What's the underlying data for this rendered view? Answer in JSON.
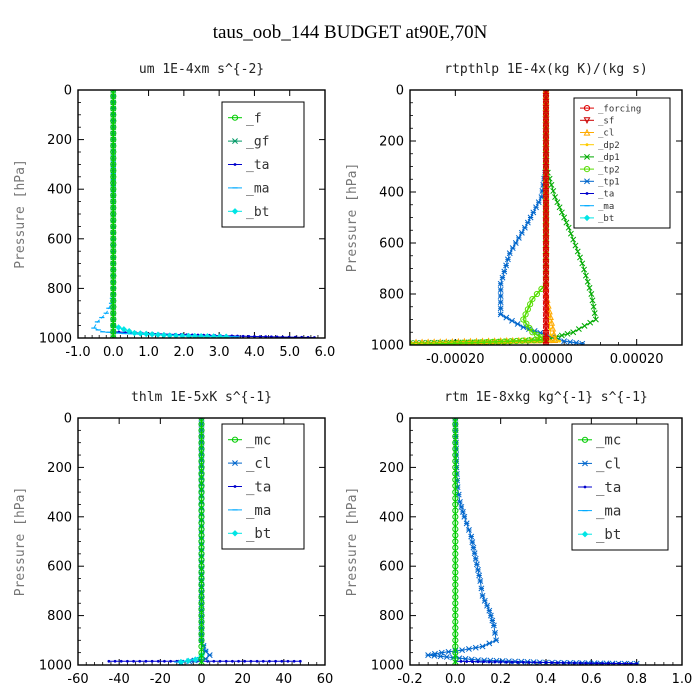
{
  "page_title": "taus_oob_144  BUDGET at90E,70N",
  "colors": {
    "green": "#00cc00",
    "teal": "#009966",
    "blue": "#0000cc",
    "cyan": "#00aaff",
    "aqua": "#00e5e5",
    "red": "#dd0000",
    "orange": "#ffaa00",
    "gold": "#ffcc00",
    "lime": "#55dd00"
  },
  "chart_data": [
    {
      "type": "line",
      "title": "um  1E-4xm s^{-2}",
      "ylabel": "Pressure [hPa]",
      "xlim": [
        -1.0,
        6.0
      ],
      "ylim": [
        0,
        1000
      ],
      "y_inverted": true,
      "x_ticks": [
        "-1.0",
        "0.0",
        "1.0",
        "2.0",
        "3.0",
        "4.0",
        "5.0",
        "6.0"
      ],
      "x_tick_values": [
        -1,
        0,
        1,
        2,
        3,
        4,
        5,
        6
      ],
      "y_ticks": [
        "0",
        "200",
        "400",
        "600",
        "800",
        "1000"
      ],
      "y_tick_values": [
        0,
        200,
        400,
        600,
        800,
        1000
      ],
      "legend": {
        "position": "top-right",
        "entries": [
          "_f",
          "_gf",
          "_ta",
          "_ma",
          "_bt"
        ]
      },
      "series": [
        {
          "name": "_ta",
          "color": "#0000cc",
          "marker": "dot",
          "points": [
            [
              0,
              975
            ],
            [
              0.8,
              980
            ],
            [
              1.6,
              985
            ],
            [
              2.4,
              988
            ],
            [
              3.2,
              991
            ],
            [
              4.0,
              994
            ],
            [
              4.8,
              996
            ],
            [
              5.7,
              998
            ]
          ]
        },
        {
          "name": "_ma",
          "color": "#00aaff",
          "marker": "dash",
          "points": [
            [
              0,
              0
            ],
            [
              0,
              820
            ],
            [
              -0.05,
              860
            ],
            [
              -0.2,
              900
            ],
            [
              -0.45,
              935
            ],
            [
              -0.55,
              960
            ],
            [
              -0.3,
              975
            ],
            [
              0.3,
              982
            ],
            [
              1.2,
              987
            ],
            [
              2.5,
              992
            ],
            [
              3.5,
              995
            ]
          ]
        },
        {
          "name": "_bt",
          "color": "#00e5e5",
          "marker": "diamond",
          "points": [
            [
              0,
              950
            ],
            [
              0.6,
              980
            ],
            [
              1.6,
              990
            ],
            [
              3.2,
              995
            ]
          ]
        },
        {
          "name": "_gf",
          "color": "#009966",
          "marker": "star",
          "points": [
            [
              0,
              0
            ],
            [
              0,
              200
            ],
            [
              0,
              400
            ],
            [
              0,
              600
            ],
            [
              0,
              800
            ],
            [
              0,
              1000
            ]
          ]
        },
        {
          "name": "_f",
          "color": "#00cc00",
          "marker": "circle",
          "points": [
            [
              0,
              0
            ],
            [
              0,
              200
            ],
            [
              0,
              400
            ],
            [
              0,
              600
            ],
            [
              0,
              800
            ],
            [
              0,
              1000
            ]
          ]
        }
      ]
    },
    {
      "type": "line",
      "title": "rtpthlp  1E-4x(kg K)/(kg s)",
      "ylabel": "Pressure [hPa]",
      "xlim": [
        -0.0003,
        0.0003
      ],
      "ylim": [
        0,
        1000
      ],
      "y_inverted": true,
      "x_ticks": [
        "-0.00020",
        "0.00000",
        "0.00020"
      ],
      "x_tick_values": [
        -0.0002,
        0,
        0.0002
      ],
      "y_ticks": [
        "0",
        "200",
        "400",
        "600",
        "800",
        "1000"
      ],
      "y_tick_values": [
        0,
        200,
        400,
        600,
        800,
        1000
      ],
      "legend": {
        "position": "top-right",
        "entries": [
          "_forcing",
          "_sf",
          "_cl",
          "_dp2",
          "_dp1",
          "_tp2",
          "_tp1",
          "_ta",
          "_ma",
          "_bt"
        ]
      },
      "series": [
        {
          "name": "_tp1",
          "color": "#0066cc",
          "marker": "star",
          "points": [
            [
              0,
              0
            ],
            [
              0,
              300
            ],
            [
              -1e-05,
              420
            ],
            [
              -4e-05,
              520
            ],
            [
              -8e-05,
              640
            ],
            [
              -0.0001,
              760
            ],
            [
              -0.0001,
              880
            ],
            [
              -5e-05,
              930
            ],
            [
              0,
              960
            ],
            [
              4e-05,
              985
            ],
            [
              8e-05,
              995
            ]
          ]
        },
        {
          "name": "_dp1",
          "color": "#00aa00",
          "marker": "x",
          "points": [
            [
              0,
              0
            ],
            [
              0,
              300
            ],
            [
              2e-05,
              420
            ],
            [
              5e-05,
              540
            ],
            [
              8e-05,
              680
            ],
            [
              0.0001,
              800
            ],
            [
              0.00011,
              900
            ],
            [
              6e-05,
              950
            ],
            [
              1e-05,
              975
            ],
            [
              -0.0001,
              988
            ],
            [
              -0.0003,
              992
            ]
          ]
        },
        {
          "name": "_dp2",
          "color": "#ffcc00",
          "marker": "dot",
          "points": [
            [
              0,
              0
            ],
            [
              0,
              800
            ],
            [
              1e-05,
              960
            ],
            [
              3e-05,
              985
            ],
            [
              -0.0001,
              990
            ],
            [
              -0.0003,
              993
            ]
          ]
        },
        {
          "name": "_cl",
          "color": "#ffaa00",
          "marker": "triangle",
          "points": [
            [
              0,
              0
            ],
            [
              0,
              800
            ],
            [
              2e-05,
              980
            ],
            [
              -0.0003,
              990
            ]
          ]
        },
        {
          "name": "_tp2",
          "color": "#55dd00",
          "marker": "circle",
          "points": [
            [
              0,
              0
            ],
            [
              0,
              760
            ],
            [
              -3e-05,
              820
            ],
            [
              -5e-05,
              900
            ],
            [
              -3e-05,
              950
            ],
            [
              0,
              980
            ],
            [
              -0.0003,
              1000
            ]
          ]
        },
        {
          "name": "_sf",
          "color": "#cc0000",
          "marker": "triangle-down",
          "points": [
            [
              0,
              0
            ],
            [
              0,
              1000
            ]
          ]
        },
        {
          "name": "_forcing",
          "color": "#dd0000",
          "marker": "circle",
          "points": [
            [
              0,
              0
            ],
            [
              0,
              1000
            ]
          ]
        }
      ]
    },
    {
      "type": "line",
      "title": "thlm  1E-5xK s^{-1}",
      "ylabel": "Pressure [hPa]",
      "xlim": [
        -60,
        60
      ],
      "ylim": [
        0,
        1000
      ],
      "y_inverted": true,
      "x_ticks": [
        "-60",
        "-40",
        "-20",
        "0",
        "20",
        "40",
        "60"
      ],
      "x_tick_values": [
        -60,
        -40,
        -20,
        0,
        20,
        40,
        60
      ],
      "y_ticks": [
        "0",
        "200",
        "400",
        "600",
        "800",
        "1000"
      ],
      "y_tick_values": [
        0,
        200,
        400,
        600,
        800,
        1000
      ],
      "legend": {
        "position": "top-right",
        "entries": [
          "_mc",
          "_cl",
          "_ta",
          "_ma",
          "_bt"
        ]
      },
      "series": [
        {
          "name": "_ta",
          "color": "#0000cc",
          "marker": "dot",
          "points": [
            [
              -45,
              985
            ],
            [
              -30,
              985
            ],
            [
              -15,
              985
            ],
            [
              0,
              985
            ],
            [
              15,
              985
            ],
            [
              30,
              985
            ],
            [
              48,
              985
            ]
          ]
        },
        {
          "name": "_ma",
          "color": "#00aaff",
          "marker": "dash",
          "points": [
            [
              0,
              0
            ],
            [
              0,
              900
            ],
            [
              2,
              940
            ],
            [
              -1,
              970
            ],
            [
              -6,
              982
            ],
            [
              -12,
              988
            ]
          ]
        },
        {
          "name": "_cl",
          "color": "#0066cc",
          "marker": "star",
          "points": [
            [
              0,
              0
            ],
            [
              0,
              900
            ],
            [
              2,
              945
            ],
            [
              4,
              960
            ],
            [
              2,
              975
            ],
            [
              -6,
              985
            ],
            [
              -10,
              990
            ]
          ]
        },
        {
          "name": "_bt",
          "color": "#00e5e5",
          "marker": "diamond",
          "points": [
            [
              0,
              960
            ],
            [
              -3,
              978
            ],
            [
              -10,
              988
            ]
          ]
        },
        {
          "name": "_mc",
          "color": "#00cc00",
          "marker": "circle",
          "points": [
            [
              0,
              0
            ],
            [
              0,
              200
            ],
            [
              0,
              400
            ],
            [
              0,
              600
            ],
            [
              0,
              800
            ],
            [
              0,
              1000
            ]
          ]
        }
      ]
    },
    {
      "type": "line",
      "title": "rtm  1E-8xkg kg^{-1} s^{-1}",
      "ylabel": "Pressure [hPa]",
      "xlim": [
        -0.2,
        1.0
      ],
      "ylim": [
        0,
        1000
      ],
      "y_inverted": true,
      "x_ticks": [
        "-0.2",
        "0.0",
        "0.2",
        "0.4",
        "0.6",
        "0.8",
        "1.0"
      ],
      "x_tick_values": [
        -0.2,
        0,
        0.2,
        0.4,
        0.6,
        0.8,
        1.0
      ],
      "y_ticks": [
        "0",
        "200",
        "400",
        "600",
        "800",
        "1000"
      ],
      "y_tick_values": [
        0,
        200,
        400,
        600,
        800,
        1000
      ],
      "legend": {
        "position": "top-right",
        "entries": [
          "_mc",
          "_cl",
          "_ta",
          "_ma",
          "_bt"
        ]
      },
      "series": [
        {
          "name": "_cl",
          "color": "#0066cc",
          "marker": "star",
          "points": [
            [
              0,
              0
            ],
            [
              0.005,
              200
            ],
            [
              0.01,
              280
            ],
            [
              0.02,
              340
            ],
            [
              0.04,
              400
            ],
            [
              0.07,
              480
            ],
            [
              0.09,
              570
            ],
            [
              0.11,
              660
            ],
            [
              0.12,
              720
            ],
            [
              0.15,
              780
            ],
            [
              0.17,
              840
            ],
            [
              0.18,
              900
            ],
            [
              0.12,
              925
            ],
            [
              0.03,
              940
            ],
            [
              -0.06,
              950
            ],
            [
              -0.12,
              960
            ],
            [
              0.1,
              980
            ],
            [
              0.4,
              990
            ],
            [
              0.8,
              995
            ]
          ]
        },
        {
          "name": "_ta",
          "color": "#0000cc",
          "marker": "dot",
          "points": [
            [
              0,
              985
            ],
            [
              0.2,
              988
            ],
            [
              0.4,
              990
            ],
            [
              0.6,
              993
            ],
            [
              0.8,
              995
            ]
          ]
        },
        {
          "name": "_mc",
          "color": "#00cc00",
          "marker": "circle",
          "points": [
            [
              0,
              0
            ],
            [
              0,
              200
            ],
            [
              0,
              400
            ],
            [
              0,
              600
            ],
            [
              0,
              800
            ],
            [
              0,
              1000
            ]
          ]
        }
      ]
    }
  ]
}
